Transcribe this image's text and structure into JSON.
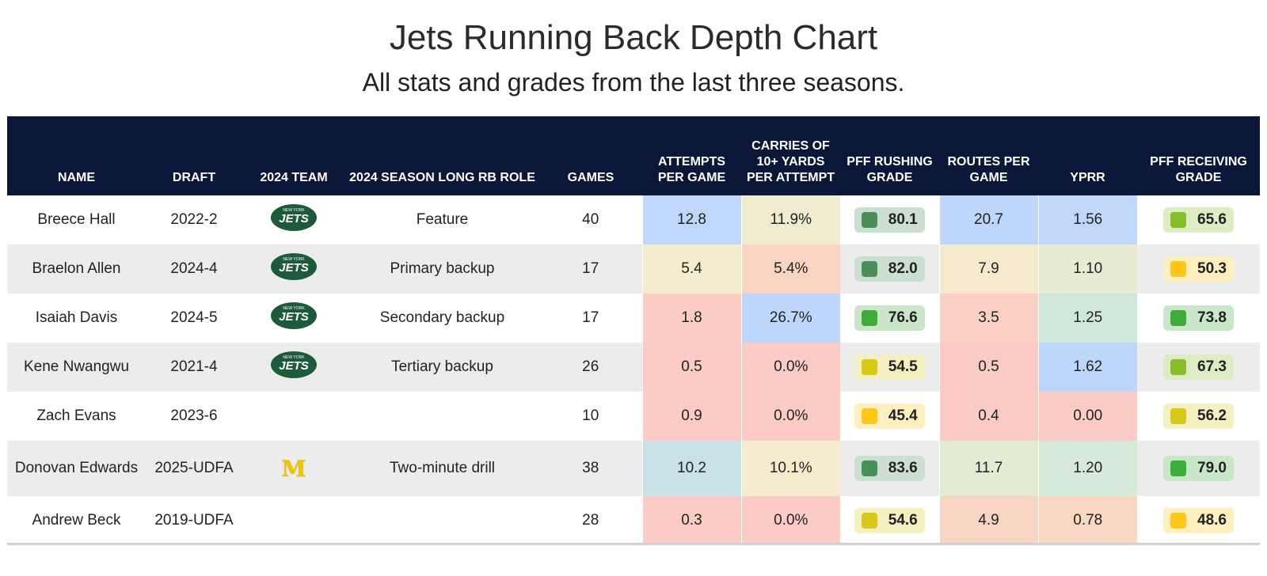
{
  "title": "Jets Running Back Depth Chart",
  "subtitle": "All stats and grades from the last three seasons.",
  "columns": [
    "NAME",
    "DRAFT",
    "2024 TEAM",
    "2024 SEASON LONG RB ROLE",
    "GAMES",
    "ATTEMPTS PER GAME",
    "CARRIES OF 10+ YARDS PER ATTEMPT",
    "PFF RUSHING GRADE",
    "ROUTES PER GAME",
    "YPRR",
    "PFF RECEIVING GRADE"
  ],
  "team_logos": {
    "jets": "JETS",
    "jets_top": "NEW YORK",
    "michigan": "M"
  },
  "colors": {
    "header_bg": "#0b1739",
    "row_alt": "#ececec",
    "grade_dark_green": "#4a8f5a",
    "grade_green": "#3fab3a",
    "grade_lime": "#85bd2a",
    "grade_yellow": "#d8c81a",
    "grade_gold": "#ffc61a"
  },
  "rows": [
    {
      "name": "Breece Hall",
      "draft": "2022-2",
      "team": "jets",
      "role": "Feature",
      "games": "40",
      "apg": "12.8",
      "c10": "11.9%",
      "rush": "80.1",
      "rpg": "20.7",
      "yprr": "1.56",
      "rec": "65.6"
    },
    {
      "name": "Braelon Allen",
      "draft": "2024-4",
      "team": "jets",
      "role": "Primary backup",
      "games": "17",
      "apg": "5.4",
      "c10": "5.4%",
      "rush": "82.0",
      "rpg": "7.9",
      "yprr": "1.10",
      "rec": "50.3"
    },
    {
      "name": "Isaiah Davis",
      "draft": "2024-5",
      "team": "jets",
      "role": "Secondary backup",
      "games": "17",
      "apg": "1.8",
      "c10": "26.7%",
      "rush": "76.6",
      "rpg": "3.5",
      "yprr": "1.25",
      "rec": "73.8"
    },
    {
      "name": "Kene Nwangwu",
      "draft": "2021-4",
      "team": "jets",
      "role": "Tertiary backup",
      "games": "26",
      "apg": "0.5",
      "c10": "0.0%",
      "rush": "54.5",
      "rpg": "0.5",
      "yprr": "1.62",
      "rec": "67.3"
    },
    {
      "name": "Zach Evans",
      "draft": "2023-6",
      "team": "",
      "role": "",
      "games": "10",
      "apg": "0.9",
      "c10": "0.0%",
      "rush": "45.4",
      "rpg": "0.4",
      "yprr": "0.00",
      "rec": "56.2"
    },
    {
      "name": "Donovan Edwards",
      "draft": "2025-UDFA",
      "team": "michigan",
      "role": "Two-minute drill",
      "games": "38",
      "apg": "10.2",
      "c10": "10.1%",
      "rush": "83.6",
      "rpg": "11.7",
      "yprr": "1.20",
      "rec": "79.0"
    },
    {
      "name": "Andrew Beck",
      "draft": "2019-UDFA",
      "team": "",
      "role": "",
      "games": "28",
      "apg": "0.3",
      "c10": "0.0%",
      "rush": "54.6",
      "rpg": "4.9",
      "yprr": "0.78",
      "rec": "48.6"
    }
  ],
  "chart_data": {
    "type": "table",
    "title": "Jets Running Back Depth Chart",
    "subtitle": "All stats and grades from the last three seasons.",
    "columns": [
      "NAME",
      "DRAFT",
      "2024 TEAM",
      "2024 SEASON LONG RB ROLE",
      "GAMES",
      "ATTEMPTS PER GAME",
      "CARRIES OF 10+ YARDS PER ATTEMPT",
      "PFF RUSHING GRADE",
      "ROUTES PER GAME",
      "YPRR",
      "PFF RECEIVING GRADE"
    ],
    "rows": [
      [
        "Breece Hall",
        "2022-2",
        "NY Jets",
        "Feature",
        40,
        12.8,
        0.119,
        80.1,
        20.7,
        1.56,
        65.6
      ],
      [
        "Braelon Allen",
        "2024-4",
        "NY Jets",
        "Primary backup",
        17,
        5.4,
        0.054,
        82.0,
        7.9,
        1.1,
        50.3
      ],
      [
        "Isaiah Davis",
        "2024-5",
        "NY Jets",
        "Secondary backup",
        17,
        1.8,
        0.267,
        76.6,
        3.5,
        1.25,
        73.8
      ],
      [
        "Kene Nwangwu",
        "2021-4",
        "NY Jets",
        "Tertiary backup",
        26,
        0.5,
        0.0,
        54.5,
        0.5,
        1.62,
        67.3
      ],
      [
        "Zach Evans",
        "2023-6",
        "",
        "",
        10,
        0.9,
        0.0,
        45.4,
        0.4,
        0.0,
        56.2
      ],
      [
        "Donovan Edwards",
        "2025-UDFA",
        "Michigan",
        "Two-minute drill",
        38,
        10.2,
        0.101,
        83.6,
        11.7,
        1.2,
        79.0
      ],
      [
        "Andrew Beck",
        "2019-UDFA",
        "",
        "",
        28,
        0.3,
        0.0,
        54.6,
        4.9,
        0.78,
        48.6
      ]
    ]
  }
}
